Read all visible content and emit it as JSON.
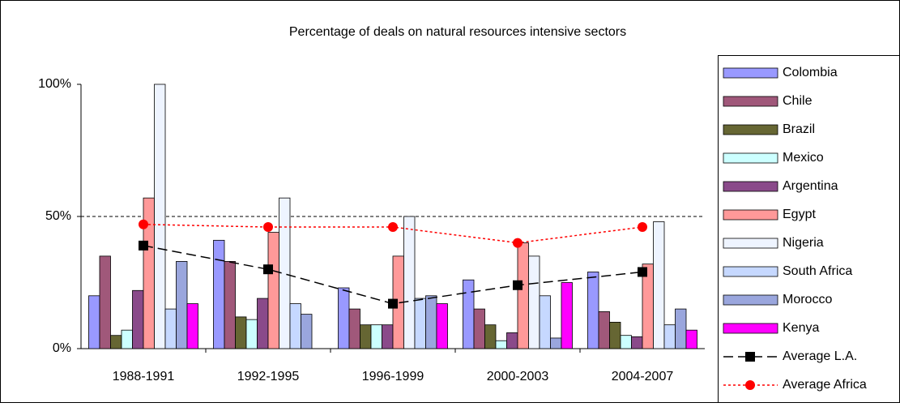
{
  "chart_data": {
    "type": "bar",
    "title": "Percentage of deals on natural resources intensive sectors",
    "categories": [
      "1988-1991",
      "1992-1995",
      "1996-1999",
      "2000-2003",
      "2004-2007"
    ],
    "ylim": [
      0,
      100
    ],
    "yticks": [
      {
        "value": 0,
        "label": "0%"
      },
      {
        "value": 50,
        "label": "50%"
      },
      {
        "value": 100,
        "label": "100%"
      }
    ],
    "grid_at": [
      50
    ],
    "legend": "right",
    "series": [
      {
        "name": "Colombia",
        "color": "#9999ff",
        "values": [
          20,
          41,
          23,
          26,
          29
        ]
      },
      {
        "name": "Chile",
        "color": "#a0587a",
        "values": [
          35,
          33,
          15,
          15,
          14
        ]
      },
      {
        "name": "Brazil",
        "color": "#666633",
        "values": [
          5,
          12,
          9,
          9,
          10
        ]
      },
      {
        "name": "Mexico",
        "color": "#ccffff",
        "values": [
          7,
          11,
          9,
          3,
          5
        ]
      },
      {
        "name": "Argentina",
        "color": "#8a4a8a",
        "values": [
          22,
          19,
          9,
          6,
          4.5
        ]
      },
      {
        "name": "Egypt",
        "color": "#ff9999",
        "values": [
          57,
          44,
          35,
          40,
          32
        ]
      },
      {
        "name": "Nigeria",
        "color": "#eef4ff",
        "values": [
          100,
          57,
          50,
          35,
          48
        ]
      },
      {
        "name": "South Africa",
        "color": "#c6d8ff",
        "values": [
          15,
          17,
          19,
          20,
          9
        ]
      },
      {
        "name": "Morocco",
        "color": "#9aa6dd",
        "values": [
          33,
          13,
          20,
          4,
          15
        ]
      },
      {
        "name": "Kenya",
        "color": "#ff00ff",
        "values": [
          17,
          0,
          17,
          25,
          7
        ]
      },
      {
        "name": "Average L.A.",
        "type": "line",
        "marker": "square",
        "line_style": "dashed",
        "color": "#000000",
        "values": [
          39,
          30,
          17,
          24,
          29
        ]
      },
      {
        "name": "Average Africa",
        "type": "line",
        "marker": "circle",
        "line_style": "dotted",
        "color": "#ff0000",
        "values": [
          47,
          46,
          46,
          40,
          46
        ]
      }
    ]
  }
}
